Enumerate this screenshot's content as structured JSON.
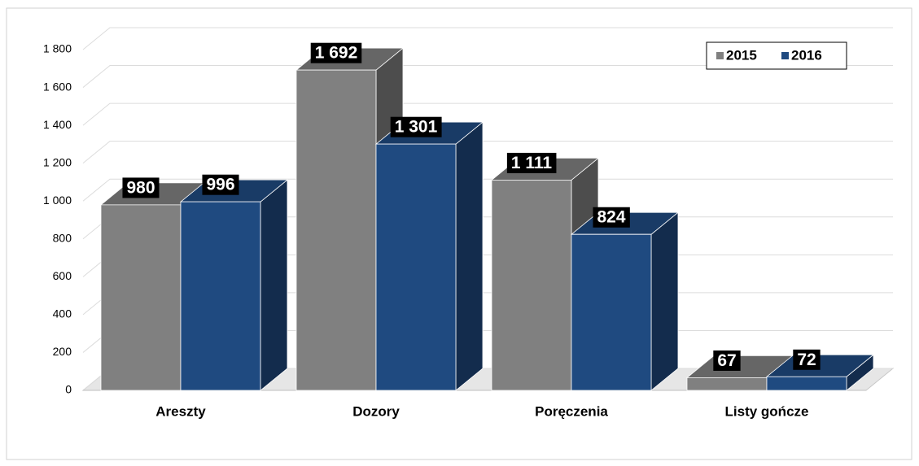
{
  "chart_data": {
    "type": "bar3d",
    "categories": [
      "Areszty",
      "Dozory",
      "Poręczenia",
      "Listy gończe"
    ],
    "series": [
      {
        "name": "2015",
        "color": "#808080",
        "values": [
          980,
          1692,
          1111,
          67
        ],
        "value_labels": [
          "980",
          "1 692",
          "1 111",
          "67"
        ]
      },
      {
        "name": "2016",
        "color": "#1f4a80",
        "values": [
          996,
          1301,
          824,
          72
        ],
        "value_labels": [
          "996",
          "1 301",
          "824",
          "72"
        ]
      }
    ],
    "ylim": [
      0,
      1800
    ],
    "yticks": [
      0,
      200,
      400,
      600,
      800,
      {
        "value": 1000,
        "label": "1 000"
      },
      {
        "value": 1200,
        "label": "1 200"
      },
      {
        "value": 1400,
        "label": "1 400"
      },
      {
        "value": 1600,
        "label": "1 600"
      },
      {
        "value": 1800,
        "label": "1 800"
      }
    ],
    "grid": true,
    "legend": "upper right"
  }
}
